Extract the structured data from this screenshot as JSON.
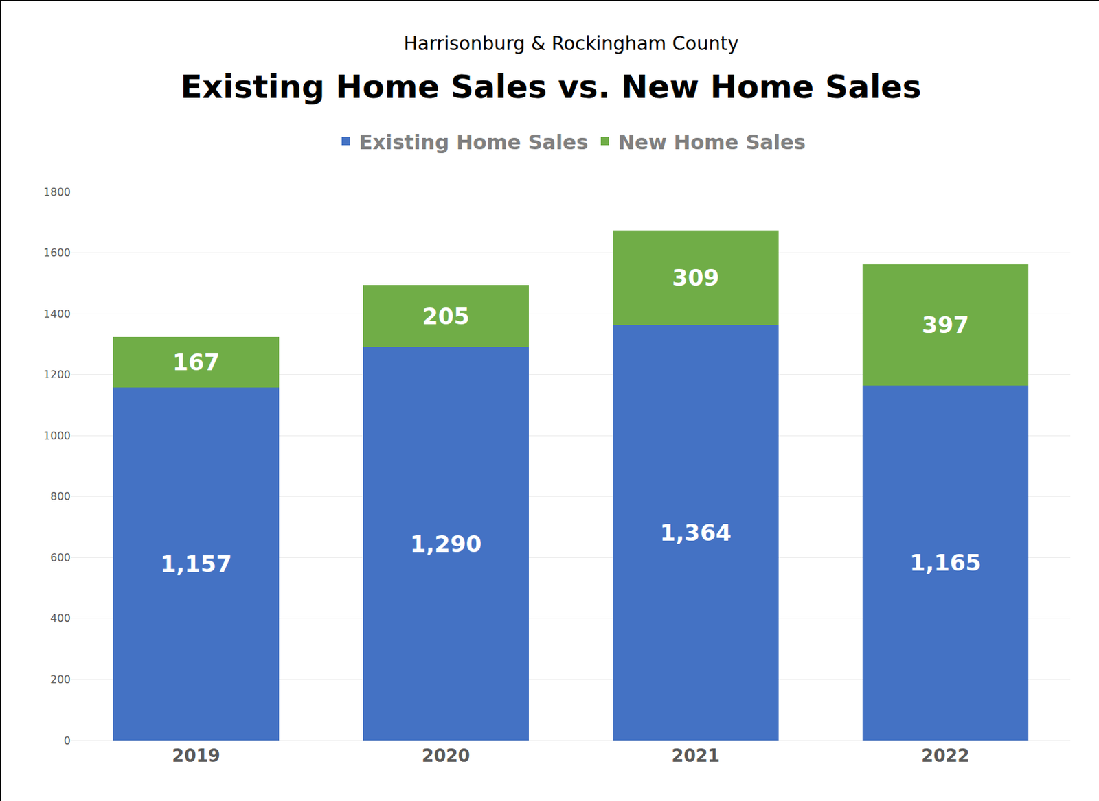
{
  "chart_data": {
    "type": "bar",
    "stacked": true,
    "title": "Existing Home Sales vs. New Home Sales",
    "subtitle": "Harrisonburg & Rockingham County",
    "categories": [
      "2019",
      "2020",
      "2021",
      "2022"
    ],
    "series": [
      {
        "name": "Existing Home Sales",
        "color": "#4472c4",
        "values": [
          1157,
          1290,
          1364,
          1165
        ],
        "value_labels": [
          "1,157",
          "1,290",
          "1,364",
          "1,165"
        ]
      },
      {
        "name": "New Home Sales",
        "color": "#70ad47",
        "values": [
          167,
          205,
          309,
          397
        ]
      }
    ],
    "ylim": [
      0,
      1800
    ],
    "yticks": [
      0,
      200,
      400,
      600,
      800,
      1000,
      1200,
      1400,
      1600,
      1800
    ],
    "grid": true,
    "legend": "top",
    "data_labels": true
  }
}
